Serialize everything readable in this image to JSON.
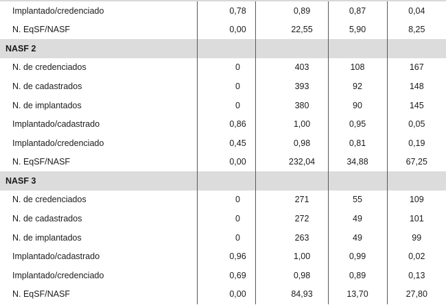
{
  "rows": [
    {
      "type": "data",
      "label": "Implantado/credenciado",
      "values": [
        "0,78",
        "0,89",
        "0,87",
        "0,04"
      ]
    },
    {
      "type": "data",
      "label": "N. EqSF/NASF",
      "values": [
        "0,00",
        "22,55",
        "5,90",
        "8,25"
      ]
    },
    {
      "type": "section",
      "label": "NASF 2"
    },
    {
      "type": "data",
      "label": "N. de credenciados",
      "values": [
        "0",
        "403",
        "108",
        "167"
      ]
    },
    {
      "type": "data",
      "label": "N. de cadastrados",
      "values": [
        "0",
        "393",
        "92",
        "148"
      ]
    },
    {
      "type": "data",
      "label": "N. de implantados",
      "values": [
        "0",
        "380",
        "90",
        "145"
      ]
    },
    {
      "type": "data",
      "label": "Implantado/cadastrado",
      "values": [
        "0,86",
        "1,00",
        "0,95",
        "0,05"
      ]
    },
    {
      "type": "data",
      "label": "Implantado/credenciado",
      "values": [
        "0,45",
        "0,98",
        "0,81",
        "0,19"
      ]
    },
    {
      "type": "data",
      "label": "N. EqSF/NASF",
      "values": [
        "0,00",
        "232,04",
        "34,88",
        "67,25"
      ]
    },
    {
      "type": "section",
      "label": "NASF 3"
    },
    {
      "type": "data",
      "label": "N. de credenciados",
      "values": [
        "0",
        "271",
        "55",
        "109"
      ]
    },
    {
      "type": "data",
      "label": "N. de cadastrados",
      "values": [
        "0",
        "272",
        "49",
        "101"
      ]
    },
    {
      "type": "data",
      "label": "N. de implantados",
      "values": [
        "0",
        "263",
        "49",
        "99"
      ]
    },
    {
      "type": "data",
      "label": "Implantado/cadastrado",
      "values": [
        "0,96",
        "1,00",
        "0,99",
        "0,02"
      ]
    },
    {
      "type": "data",
      "label": "Implantado/credenciado",
      "values": [
        "0,69",
        "0,98",
        "0,89",
        "0,13"
      ]
    },
    {
      "type": "data",
      "label": "N. EqSF/NASF",
      "values": [
        "0,00",
        "84,93",
        "13,70",
        "27,80"
      ]
    }
  ]
}
